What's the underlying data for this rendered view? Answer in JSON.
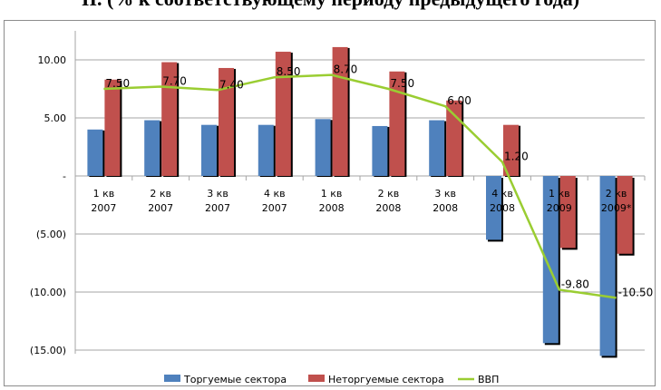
{
  "title": "II. (% к соответствующему периоду предыдущего года)",
  "chart_data": {
    "type": "bar",
    "categories": [
      [
        "1 кв",
        "2007"
      ],
      [
        "2 кв",
        "2007"
      ],
      [
        "3 кв",
        "2007"
      ],
      [
        "4 кв",
        "2007"
      ],
      [
        "1 кв",
        "2008"
      ],
      [
        "2 кв",
        "2008"
      ],
      [
        "3 кв",
        "2008"
      ],
      [
        "4 кв",
        "2008"
      ],
      [
        "1 кв",
        "2009"
      ],
      [
        "2 кв",
        "2009*"
      ]
    ],
    "series": [
      {
        "name": "Торгуемые сектора",
        "kind": "bar",
        "color": "#4f81bd",
        "values": [
          4.0,
          4.8,
          4.4,
          4.4,
          4.9,
          4.3,
          4.8,
          -5.5,
          -14.4,
          -15.5
        ]
      },
      {
        "name": "Неторгуемые сектора",
        "kind": "bar",
        "color": "#c0504d",
        "values": [
          8.3,
          9.8,
          9.3,
          10.7,
          11.1,
          9.0,
          6.5,
          4.4,
          -6.2,
          -6.7
        ]
      },
      {
        "name": "ВВП",
        "kind": "line",
        "color": "#9acd32",
        "values": [
          7.5,
          7.7,
          7.4,
          8.5,
          8.7,
          7.5,
          6.0,
          1.2,
          -9.8,
          -10.5
        ],
        "labels": [
          "7.50",
          "7.70",
          "7.40",
          "8.50",
          "8.70",
          "7.50",
          "6.00",
          "1.20",
          "-9.80",
          "-10.50"
        ]
      }
    ],
    "ylim": [
      -15.0,
      12.5
    ],
    "yticks": [
      10,
      5,
      0,
      -5,
      -10,
      -15
    ],
    "ytick_labels": [
      "10.00",
      "5.00",
      "-",
      "(5.00)",
      "(10.00)",
      "(15.00)"
    ],
    "grid": true,
    "legend_position": "bottom"
  }
}
